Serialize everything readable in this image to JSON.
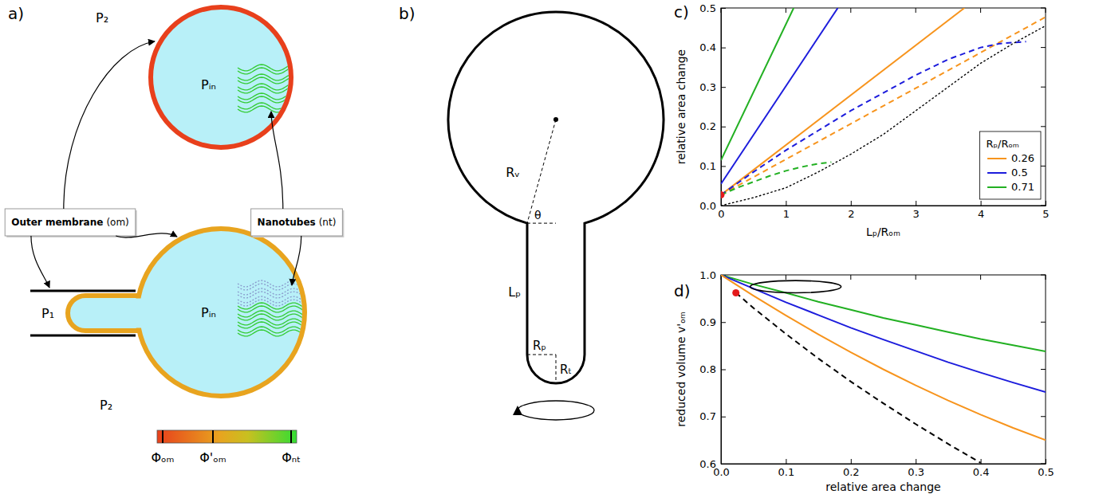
{
  "panel_labels": [
    "a)",
    "b)",
    "c)",
    "d)"
  ],
  "diagram_a": {
    "top_vesicle": {
      "outside_pressure": "P₂",
      "inside_pressure": "Pᵢₙ"
    },
    "bottom_vesicle": {
      "pipette_pressure": "P₁",
      "inside_pressure": "Pᵢₙ",
      "outside_pressure": "P₂"
    },
    "boxes": [
      {
        "title": "Outer membrane",
        "abbreviation": "(om)"
      },
      {
        "title": "Nanotubes",
        "abbreviation": "(nt)"
      }
    ],
    "colorbar_labels": [
      "Φₒₘ",
      "Φ'ₒₘ",
      "Φₙₜ"
    ]
  },
  "diagram_b": {
    "labels": {
      "vesicle_radius": "Rᵥ",
      "angle": "θ",
      "pipette_length": "Lₚ",
      "pipette_radius": "Rₚ",
      "tip_radius": "Rₜ"
    }
  },
  "chart_data": [
    {
      "type": "line",
      "xlabel": "Lₚ/Rₒₘ",
      "ylabel": "relative area change",
      "xlim": [
        0,
        5
      ],
      "ylim": [
        0,
        0.5
      ],
      "xticks": [
        0,
        1,
        2,
        3,
        4,
        5
      ],
      "yticks": [
        {
          "value": 0,
          "label": "0.0"
        },
        0.1,
        0.2,
        0.3,
        0.4,
        0.5
      ],
      "legend": "lower right",
      "legend_title": "Rₚ/Rₒₘ",
      "series": [
        {
          "name": "0.26",
          "color": "#f7941d",
          "line_style": "solid",
          "x": [
            0,
            3.75
          ],
          "values": [
            0.027,
            0.5
          ]
        },
        {
          "name": "0.5",
          "color": "#1c1cdc",
          "line_style": "solid",
          "x": [
            0,
            1.8
          ],
          "values": [
            0.055,
            0.5
          ]
        },
        {
          "name": "0.71",
          "color": "#22b022",
          "line_style": "solid",
          "x": [
            0,
            1.12
          ],
          "values": [
            0.115,
            0.5
          ]
        },
        {
          "color": "#f7941d",
          "line_style": "dashed",
          "x": [
            0,
            1,
            2,
            3,
            4,
            5
          ],
          "values": [
            0.027,
            0.117,
            0.207,
            0.297,
            0.387,
            0.477
          ]
        },
        {
          "color": "#1c1cdc",
          "line_style": "dashed",
          "x": [
            0,
            0.5,
            1,
            1.5,
            2,
            2.5,
            3,
            3.5,
            4,
            4.3,
            4.7
          ],
          "values": [
            0.027,
            0.085,
            0.14,
            0.19,
            0.24,
            0.285,
            0.33,
            0.37,
            0.4,
            0.41,
            0.415
          ]
        },
        {
          "color": "#22b022",
          "line_style": "dashed",
          "x": [
            0,
            0.25,
            0.5,
            0.75,
            1,
            1.25,
            1.5,
            1.7
          ],
          "values": [
            0.027,
            0.045,
            0.06,
            0.075,
            0.088,
            0.098,
            0.106,
            0.11
          ]
        },
        {
          "color": "#000000",
          "line_style": "dotted",
          "x": [
            0,
            0.5,
            1,
            1.5,
            2,
            2.5,
            3,
            3.5,
            4,
            4.5,
            5
          ],
          "values": [
            0,
            0.02,
            0.045,
            0.085,
            0.13,
            0.18,
            0.24,
            0.3,
            0.36,
            0.41,
            0.455
          ]
        },
        {
          "type": "scatter",
          "marker": "circle",
          "color": "#e41a1c",
          "x": [
            0
          ],
          "values": [
            0.027
          ]
        }
      ]
    },
    {
      "type": "line",
      "xlabel": "relative area change",
      "ylabel": "reduced volume v'ₒₘ",
      "xlim": [
        0,
        0.5
      ],
      "ylim": [
        0.6,
        1.0
      ],
      "xticks": [
        {
          "value": 0,
          "label": "0.0"
        },
        0.1,
        0.2,
        0.3,
        0.4,
        0.5
      ],
      "yticks": [
        0.6,
        0.7,
        0.8,
        0.9,
        {
          "value": 1,
          "label": "1.0"
        }
      ],
      "series": [
        {
          "color": "#22b022",
          "line_style": "solid",
          "x": [
            0,
            0.05,
            0.1,
            0.15,
            0.2,
            0.25,
            0.3,
            0.35,
            0.4,
            0.45,
            0.5
          ],
          "values": [
            1,
            0.98,
            0.962,
            0.943,
            0.926,
            0.909,
            0.894,
            0.879,
            0.864,
            0.851,
            0.838
          ]
        },
        {
          "color": "#1c1cdc",
          "line_style": "solid",
          "x": [
            0,
            0.05,
            0.1,
            0.15,
            0.2,
            0.25,
            0.3,
            0.35,
            0.4,
            0.45,
            0.5
          ],
          "values": [
            1,
            0.971,
            0.942,
            0.915,
            0.888,
            0.863,
            0.839,
            0.815,
            0.793,
            0.772,
            0.752
          ]
        },
        {
          "color": "#f7941d",
          "line_style": "solid",
          "x": [
            0,
            0.05,
            0.1,
            0.15,
            0.2,
            0.25,
            0.3,
            0.35,
            0.4,
            0.45,
            0.5
          ],
          "values": [
            1,
            0.956,
            0.914,
            0.874,
            0.836,
            0.8,
            0.766,
            0.734,
            0.704,
            0.676,
            0.65
          ]
        },
        {
          "color": "#000000",
          "line_style": "dashed",
          "x": [
            0.023,
            0.05,
            0.1,
            0.15,
            0.2,
            0.25,
            0.3,
            0.35,
            0.4
          ],
          "values": [
            0.962,
            0.93,
            0.875,
            0.823,
            0.774,
            0.728,
            0.684,
            0.642,
            0.602
          ]
        },
        {
          "type": "scatter",
          "marker": "circle",
          "color": "#e41a1c",
          "x": [
            0.023
          ],
          "values": [
            0.962
          ]
        }
      ],
      "ellipse": {
        "x": [
          0.045,
          0.185
        ],
        "y": [
          0.962,
          0.988
        ]
      }
    }
  ]
}
